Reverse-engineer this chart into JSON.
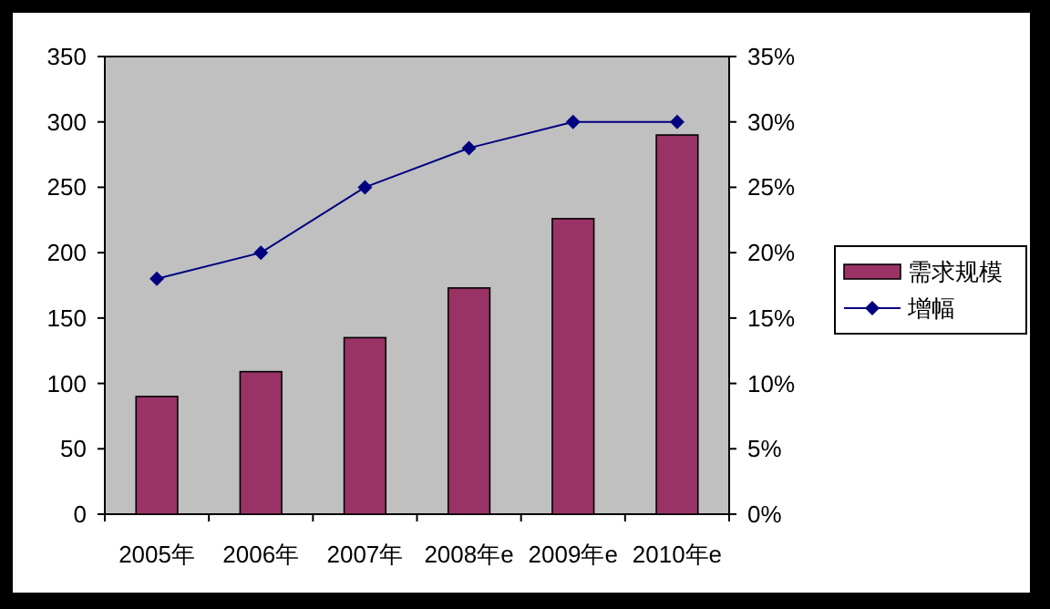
{
  "chart_data": {
    "type": "bar",
    "categories": [
      "2005年",
      "2006年",
      "2007年",
      "2008年e",
      "2009年e",
      "2010年e"
    ],
    "series": [
      {
        "name": "需求规模",
        "color": "#993366",
        "values": [
          90,
          109,
          135,
          173,
          226,
          290
        ]
      },
      {
        "name": "增幅",
        "type": "line",
        "color": "#000080",
        "axis": "y2",
        "marker": "diamond",
        "values": [
          18,
          20,
          25,
          28,
          30,
          30
        ]
      }
    ],
    "ylim": [
      0,
      350
    ],
    "yticks": [
      0,
      50,
      100,
      150,
      200,
      250,
      300,
      350
    ],
    "y2lim": [
      0,
      35
    ],
    "y2ticks": [
      {
        "value": 0,
        "label": "0%"
      },
      {
        "value": 5,
        "label": "5%"
      },
      {
        "value": 10,
        "label": "10%"
      },
      {
        "value": 15,
        "label": "15%"
      },
      {
        "value": 20,
        "label": "20%"
      },
      {
        "value": 25,
        "label": "25%"
      },
      {
        "value": 30,
        "label": "30%"
      },
      {
        "value": 35,
        "label": "35%"
      }
    ],
    "legend": "right",
    "grid": false
  }
}
